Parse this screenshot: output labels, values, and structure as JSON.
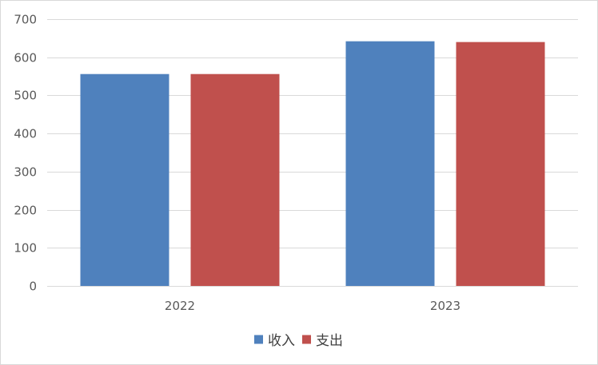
{
  "chart_data": {
    "type": "bar",
    "title": "",
    "xlabel": "",
    "ylabel": "",
    "categories": [
      "2022",
      "2023"
    ],
    "series": [
      {
        "name": "收入",
        "color": "#4f81bd",
        "values": [
          556,
          642
        ]
      },
      {
        "name": "支出",
        "color": "#c0504d",
        "values": [
          556,
          640
        ]
      }
    ],
    "ylim": [
      0,
      700
    ],
    "yticks": [
      0,
      100,
      200,
      300,
      400,
      500,
      600,
      700
    ],
    "grid": true,
    "legend_position": "bottom",
    "gridline_color": "#d9d9d9",
    "axis_color": "#d9d9d9"
  }
}
